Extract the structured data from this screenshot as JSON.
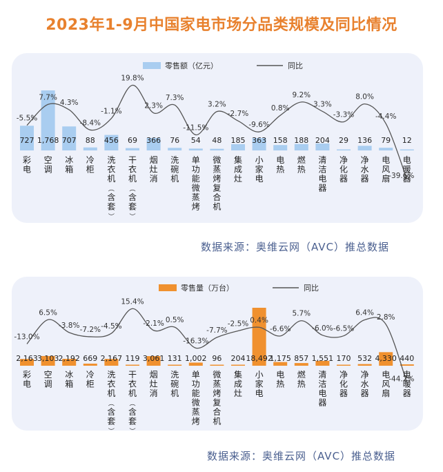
{
  "title": "2023年1-9月中国家电市场分品类规模及同比情况",
  "source_1": "数据来源：奥维云网（AVC）推总数据",
  "source_2": "数据来源：奥维云网（AVC）推总数据",
  "colors": {
    "title": "#E8812E",
    "bar1": "#A9CDF0",
    "bar2": "#F0912F",
    "line": "#555555",
    "panel": "#EEF1FA"
  },
  "chart_data": [
    {
      "type": "bar",
      "categories": [
        "彩电",
        "空调",
        "冰箱",
        "冷柜",
        "洗衣机（含套）",
        "干衣机（含套）",
        "烟灶消",
        "洗碗机",
        "单功能微蒸烤",
        "微蒸烤复合机",
        "集成灶",
        "小家电",
        "电热",
        "燃热",
        "清洁电器",
        "净化器",
        "净水器",
        "电风扇",
        "电暖器"
      ],
      "series": [
        {
          "name": "零售额（亿元）",
          "type": "bar",
          "values": [
            727,
            1768,
            707,
            88,
            456,
            69,
            366,
            76,
            54,
            48,
            185,
            363,
            158,
            188,
            204,
            29,
            136,
            79,
            12
          ],
          "labels": [
            "727",
            "1,768",
            "707",
            "88",
            "456",
            "69",
            "366",
            "76",
            "54",
            "48",
            "185",
            "363",
            "158",
            "188",
            "204",
            "29",
            "136",
            "79",
            "12"
          ]
        },
        {
          "name": "同比",
          "type": "line",
          "values": [
            -5.5,
            7.7,
            4.3,
            -8.4,
            -1.1,
            19.8,
            2.3,
            7.3,
            -11.5,
            3.2,
            -2.7,
            -9.6,
            0.8,
            9.2,
            3.3,
            -3.3,
            8.0,
            -4.4,
            -39.6
          ],
          "labels": [
            "-5.5%",
            "7.7%",
            "4.3%",
            "-8.4%",
            "-1.1%",
            "19.8%",
            "2.3%",
            "7.3%",
            "-11.5%",
            "3.2%",
            "-2.7%",
            "-9.6%",
            "0.8%",
            "9.2%",
            "3.3%",
            "-3.3%",
            "8.0%",
            "-4.4%",
            "-39.6%"
          ]
        }
      ]
    },
    {
      "type": "bar",
      "categories": [
        "彩电",
        "空调",
        "冰箱",
        "冷柜",
        "洗衣机（含套）",
        "干衣机（含套）",
        "烟灶消",
        "洗碗机",
        "单功能微蒸烤",
        "微蒸烤复合机",
        "集成灶",
        "小家电",
        "电热",
        "燃热",
        "清洁电器",
        "净化器",
        "净水器",
        "电风扇",
        "电暖器"
      ],
      "series": [
        {
          "name": "零售量（万台）",
          "type": "bar",
          "values": [
            2163,
            3103,
            2192,
            669,
            2167,
            119,
            3061,
            131,
            1002,
            96,
            204,
            18492,
            1175,
            857,
            1551,
            170,
            532,
            4330,
            440
          ],
          "labels": [
            "2,163",
            "3,103",
            "2,192",
            "669",
            "2,167",
            "119",
            "3,061",
            "131",
            "1,002",
            "96",
            "204",
            "18,492",
            "1,175",
            "857",
            "1,551",
            "170",
            "532",
            "4,330",
            "440"
          ]
        },
        {
          "name": "同比",
          "type": "line",
          "values": [
            -13.0,
            6.5,
            -3.8,
            -7.2,
            -4.5,
            15.4,
            -2.1,
            0.5,
            -16.3,
            -7.7,
            -2.5,
            0.4,
            -6.6,
            5.7,
            -6.0,
            -6.5,
            6.4,
            2.8,
            -44.2
          ],
          "labels": [
            "-13.0%",
            "6.5%",
            "-3.8%",
            "-7.2%",
            "-4.5%",
            "15.4%",
            "-2.1%",
            "0.5%",
            "-16.3%",
            "-7.7%",
            "-2.5%",
            "0.4%",
            "-6.6%",
            "5.7%",
            "-6.0%",
            "-6.5%",
            "6.4%",
            "2.8%",
            "-44.2%"
          ]
        }
      ]
    }
  ]
}
